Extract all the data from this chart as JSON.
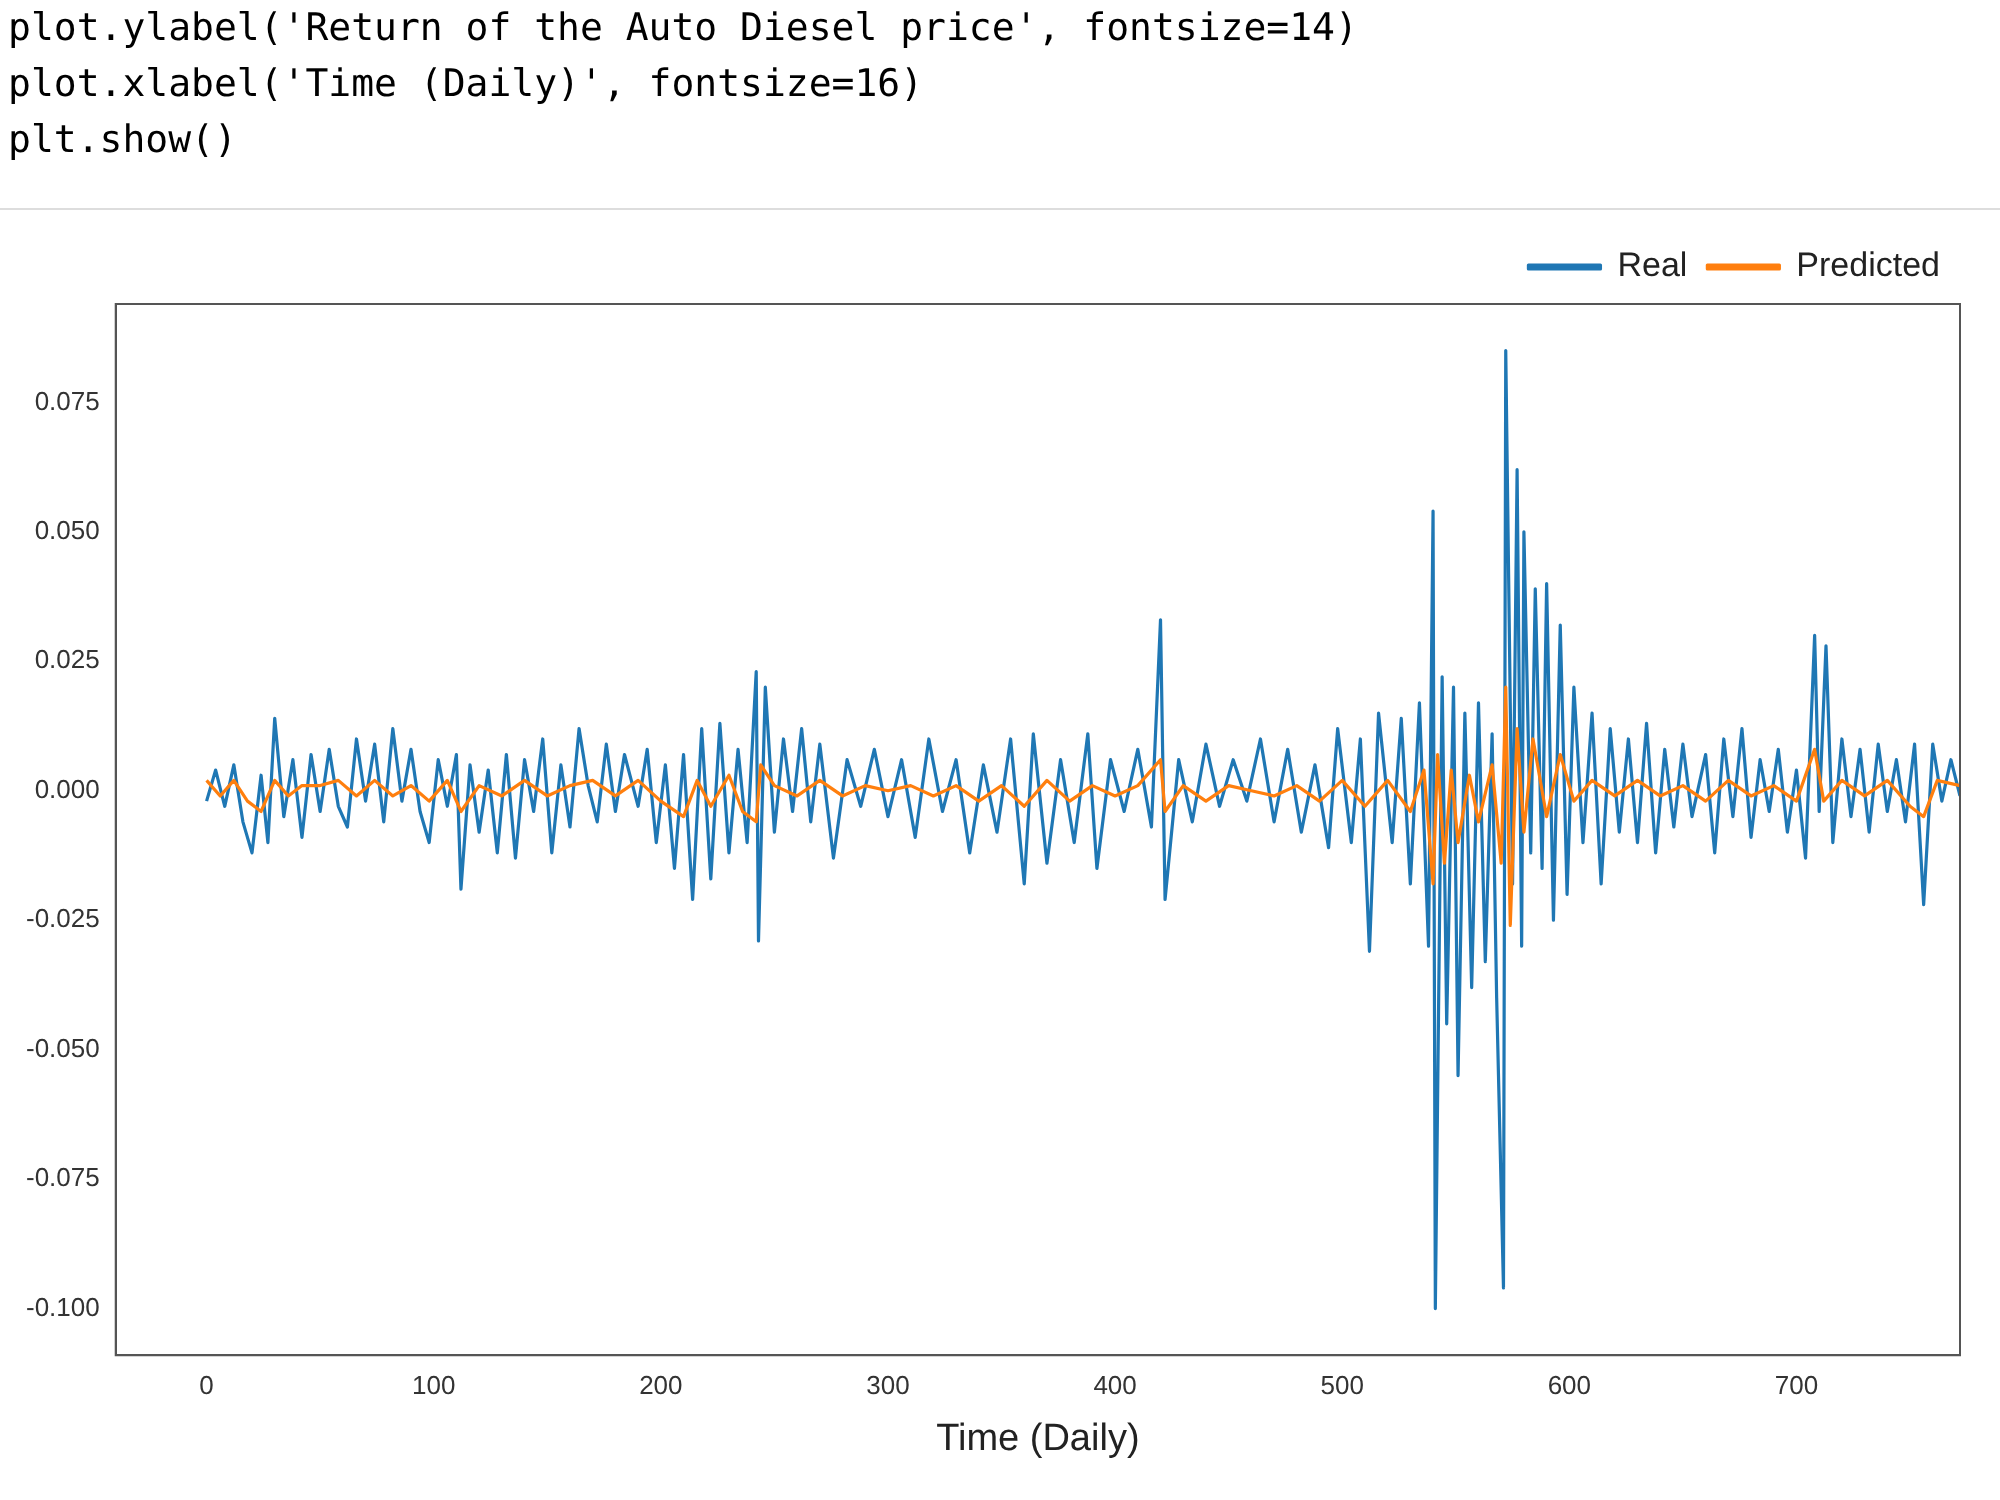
{
  "chart_data": {
    "type": "line",
    "xlabel": "Time (Daily)",
    "annotations": [
      "plot.ylabel('Return of the Auto Diesel price', fontsize=14)",
      "plot.xlabel('Time (Daily)', fontsize=16)",
      "plt.show()"
    ],
    "xlim": [
      -40,
      772
    ],
    "xticks": [
      0,
      100,
      200,
      300,
      400,
      500,
      600,
      700
    ],
    "ylim": [
      -0.109,
      0.094
    ],
    "yticks": [
      {
        "value": -0.1,
        "label": "-0.100"
      },
      {
        "value": -0.075,
        "label": "-0.075"
      },
      {
        "value": -0.05,
        "label": "-0.050"
      },
      {
        "value": -0.025,
        "label": "-0.025"
      },
      {
        "value": 0,
        "label": "0.000"
      },
      {
        "value": 0.025,
        "label": "0.025"
      },
      {
        "value": 0.05,
        "label": "0.050"
      },
      0.075
    ],
    "grid": false,
    "legend": "top right",
    "marker": "none",
    "line_style": "solid",
    "series": [
      {
        "name": "Real",
        "color": "#1f77b4",
        "x": [
          0,
          4,
          8,
          12,
          16,
          20,
          24,
          27,
          30,
          34,
          38,
          42,
          46,
          50,
          54,
          58,
          62,
          66,
          70,
          74,
          78,
          82,
          86,
          90,
          94,
          98,
          102,
          106,
          110,
          112,
          116,
          120,
          124,
          128,
          132,
          136,
          140,
          144,
          148,
          152,
          156,
          160,
          164,
          168,
          172,
          176,
          180,
          184,
          190,
          194,
          198,
          202,
          206,
          210,
          214,
          218,
          222,
          226,
          230,
          234,
          238,
          242,
          243,
          246,
          250,
          254,
          258,
          262,
          266,
          270,
          276,
          282,
          288,
          294,
          300,
          306,
          312,
          318,
          324,
          330,
          336,
          342,
          348,
          354,
          360,
          364,
          370,
          376,
          382,
          388,
          392,
          398,
          404,
          410,
          416,
          420,
          422,
          428,
          434,
          440,
          446,
          452,
          458,
          464,
          470,
          476,
          482,
          488,
          494,
          498,
          504,
          508,
          512,
          516,
          522,
          526,
          530,
          534,
          538,
          540,
          541,
          544,
          546,
          549,
          551,
          554,
          557,
          560,
          563,
          566,
          568,
          571,
          572,
          575,
          577,
          579,
          580,
          583,
          585,
          588,
          590,
          593,
          596,
          599,
          602,
          606,
          610,
          614,
          618,
          622,
          626,
          630,
          634,
          638,
          642,
          646,
          650,
          654,
          660,
          664,
          668,
          672,
          676,
          680,
          684,
          688,
          692,
          696,
          700,
          704,
          708,
          710,
          713,
          716,
          720,
          724,
          728,
          732,
          736,
          740,
          744,
          748,
          752,
          756,
          760,
          764,
          768,
          772
        ],
        "values": [
          -0.002,
          0.004,
          -0.003,
          0.005,
          -0.006,
          -0.012,
          0.003,
          -0.01,
          0.014,
          -0.005,
          0.006,
          -0.009,
          0.007,
          -0.004,
          0.008,
          -0.003,
          -0.007,
          0.01,
          -0.002,
          0.009,
          -0.006,
          0.012,
          -0.002,
          0.008,
          -0.004,
          -0.01,
          0.006,
          -0.003,
          0.007,
          -0.019,
          0.005,
          -0.008,
          0.004,
          -0.012,
          0.007,
          -0.013,
          0.006,
          -0.004,
          0.01,
          -0.012,
          0.005,
          -0.007,
          0.012,
          0.001,
          -0.006,
          0.009,
          -0.004,
          0.007,
          -0.003,
          0.008,
          -0.01,
          0.005,
          -0.015,
          0.007,
          -0.021,
          0.012,
          -0.017,
          0.013,
          -0.012,
          0.008,
          -0.01,
          0.023,
          -0.029,
          0.02,
          -0.008,
          0.01,
          -0.004,
          0.012,
          -0.006,
          0.009,
          -0.013,
          0.006,
          -0.003,
          0.008,
          -0.005,
          0.006,
          -0.009,
          0.01,
          -0.004,
          0.006,
          -0.012,
          0.005,
          -0.008,
          0.01,
          -0.018,
          0.011,
          -0.014,
          0.006,
          -0.01,
          0.011,
          -0.015,
          0.006,
          -0.004,
          0.008,
          -0.007,
          0.033,
          -0.021,
          0.006,
          -0.006,
          0.009,
          -0.003,
          0.006,
          -0.002,
          0.01,
          -0.006,
          0.008,
          -0.008,
          0.005,
          -0.011,
          0.012,
          -0.01,
          0.01,
          -0.031,
          0.015,
          -0.01,
          0.014,
          -0.018,
          0.017,
          -0.03,
          0.054,
          -0.1,
          0.022,
          -0.045,
          0.02,
          -0.055,
          0.015,
          -0.038,
          0.017,
          -0.033,
          0.011,
          -0.04,
          -0.096,
          0.085,
          -0.018,
          0.062,
          -0.03,
          0.05,
          -0.012,
          0.039,
          -0.015,
          0.04,
          -0.025,
          0.032,
          -0.02,
          0.02,
          -0.01,
          0.015,
          -0.018,
          0.012,
          -0.008,
          0.01,
          -0.01,
          0.013,
          -0.012,
          0.008,
          -0.007,
          0.009,
          -0.005,
          0.007,
          -0.012,
          0.01,
          -0.005,
          0.012,
          -0.009,
          0.006,
          -0.004,
          0.008,
          -0.008,
          0.004,
          -0.013,
          0.03,
          -0.004,
          0.028,
          -0.01,
          0.01,
          -0.005,
          0.008,
          -0.008,
          0.009,
          -0.004,
          0.006,
          -0.006,
          0.009,
          -0.022,
          0.009,
          -0.002,
          0.006,
          -0.001
        ]
      },
      {
        "name": "Predicted",
        "color": "#ff7f0e",
        "x": [
          0,
          6,
          12,
          18,
          24,
          30,
          36,
          42,
          50,
          58,
          66,
          74,
          82,
          90,
          98,
          106,
          112,
          120,
          130,
          140,
          150,
          160,
          170,
          180,
          190,
          200,
          210,
          216,
          222,
          230,
          236,
          242,
          244,
          250,
          260,
          270,
          280,
          290,
          300,
          310,
          320,
          330,
          340,
          350,
          360,
          370,
          380,
          390,
          400,
          410,
          420,
          422,
          430,
          440,
          450,
          460,
          470,
          480,
          490,
          500,
          510,
          520,
          530,
          536,
          540,
          542,
          545,
          548,
          551,
          556,
          560,
          566,
          570,
          572,
          574,
          577,
          580,
          584,
          590,
          596,
          602,
          610,
          620,
          630,
          640,
          650,
          660,
          670,
          680,
          690,
          700,
          708,
          712,
          720,
          730,
          740,
          750,
          756,
          762,
          772
        ],
        "values": [
          0.002,
          -0.001,
          0.002,
          -0.002,
          -0.004,
          0.002,
          -0.001,
          0.001,
          0.001,
          0.002,
          -0.001,
          0.002,
          -0.001,
          0.001,
          -0.002,
          0.002,
          -0.004,
          0.001,
          -0.001,
          0.002,
          -0.001,
          0.001,
          0.002,
          -0.001,
          0.002,
          -0.002,
          -0.005,
          0.002,
          -0.003,
          0.003,
          -0.004,
          -0.006,
          0.005,
          0.001,
          -0.001,
          0.002,
          -0.001,
          0.001,
          0,
          0.001,
          -0.001,
          0.001,
          -0.002,
          0.001,
          -0.003,
          0.002,
          -0.002,
          0.001,
          -0.001,
          0.001,
          0.006,
          -0.004,
          0.001,
          -0.002,
          0.001,
          0,
          -0.001,
          0.001,
          -0.002,
          0.002,
          -0.003,
          0.002,
          -0.004,
          0.004,
          -0.018,
          0.007,
          -0.014,
          0.004,
          -0.01,
          0.003,
          -0.006,
          0.005,
          -0.014,
          0.02,
          -0.026,
          0.012,
          -0.008,
          0.01,
          -0.005,
          0.007,
          -0.002,
          0.002,
          -0.001,
          0.002,
          -0.001,
          0.001,
          -0.002,
          0.002,
          -0.001,
          0.001,
          -0.002,
          0.008,
          -0.002,
          0.002,
          -0.001,
          0.002,
          -0.003,
          -0.005,
          0.002,
          0.001
        ]
      }
    ]
  }
}
